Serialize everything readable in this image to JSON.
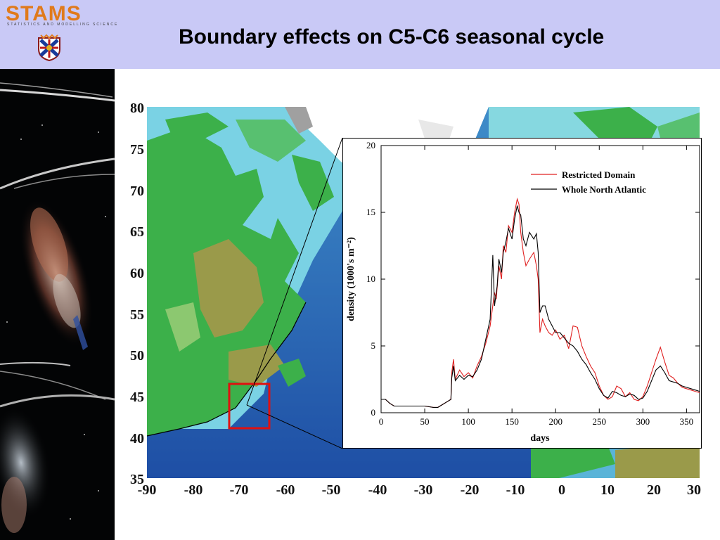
{
  "header": {
    "logo_text": "STAMS",
    "logo_subtext": "STATISTICS AND MODELLING SCIENCE",
    "title": "Boundary effects on C5-C6 seasonal cycle"
  },
  "photo": {
    "subject": "copepod"
  },
  "colors": {
    "header_bg": "#c9c9f6",
    "logo": "#e07a1c",
    "highlight_box": "#e01010",
    "restricted_line": "#e02020",
    "whole_line": "#000000"
  },
  "map": {
    "x_ticks": [
      "-90",
      "-80",
      "-70",
      "-60",
      "-50",
      "-40",
      "-30",
      "-20",
      "-10",
      "0",
      "10",
      "20",
      "30"
    ],
    "y_ticks": [
      "80",
      "75",
      "70",
      "65",
      "60",
      "55",
      "50",
      "45",
      "40",
      "35"
    ]
  },
  "chart_data": {
    "type": "line",
    "xlabel": "days",
    "ylabel": "density (1000's m⁻²)",
    "xlim": [
      0,
      365
    ],
    "ylim": [
      0,
      20
    ],
    "x_ticks": [
      0,
      50,
      100,
      150,
      200,
      250,
      300,
      350
    ],
    "y_ticks": [
      0,
      5,
      10,
      15,
      20
    ],
    "legend_position": "top-right",
    "grid": false,
    "series": [
      {
        "name": "Restricted Domain",
        "color": "#e02020",
        "points": [
          [
            0,
            1.0
          ],
          [
            5,
            1.0
          ],
          [
            10,
            0.7
          ],
          [
            15,
            0.5
          ],
          [
            20,
            0.5
          ],
          [
            30,
            0.5
          ],
          [
            40,
            0.5
          ],
          [
            50,
            0.5
          ],
          [
            60,
            0.4
          ],
          [
            65,
            0.4
          ],
          [
            70,
            0.6
          ],
          [
            75,
            0.8
          ],
          [
            80,
            1.0
          ],
          [
            81,
            3.0
          ],
          [
            83,
            4.0
          ],
          [
            85,
            2.5
          ],
          [
            90,
            3.2
          ],
          [
            95,
            2.7
          ],
          [
            100,
            3.0
          ],
          [
            105,
            2.6
          ],
          [
            110,
            3.5
          ],
          [
            115,
            4.2
          ],
          [
            120,
            5.2
          ],
          [
            125,
            6.5
          ],
          [
            130,
            9.0
          ],
          [
            132,
            8.5
          ],
          [
            135,
            11.0
          ],
          [
            138,
            10.0
          ],
          [
            140,
            12.5
          ],
          [
            143,
            12.0
          ],
          [
            146,
            14.0
          ],
          [
            150,
            13.5
          ],
          [
            153,
            15.0
          ],
          [
            156,
            16.0
          ],
          [
            158,
            15.6
          ],
          [
            160,
            13.5
          ],
          [
            163,
            12.0
          ],
          [
            166,
            11.0
          ],
          [
            170,
            11.5
          ],
          [
            175,
            12.0
          ],
          [
            178,
            11.0
          ],
          [
            180,
            10.0
          ],
          [
            182,
            6.0
          ],
          [
            185,
            7.0
          ],
          [
            188,
            6.5
          ],
          [
            192,
            6.0
          ],
          [
            196,
            5.8
          ],
          [
            200,
            6.2
          ],
          [
            205,
            5.5
          ],
          [
            210,
            5.8
          ],
          [
            215,
            4.8
          ],
          [
            220,
            6.5
          ],
          [
            225,
            6.4
          ],
          [
            230,
            5.0
          ],
          [
            235,
            4.2
          ],
          [
            240,
            3.5
          ],
          [
            245,
            3.0
          ],
          [
            250,
            2.0
          ],
          [
            255,
            1.3
          ],
          [
            260,
            1.0
          ],
          [
            265,
            1.2
          ],
          [
            270,
            2.0
          ],
          [
            275,
            1.8
          ],
          [
            280,
            1.2
          ],
          [
            285,
            1.5
          ],
          [
            290,
            1.0
          ],
          [
            295,
            0.9
          ],
          [
            300,
            1.2
          ],
          [
            305,
            2.0
          ],
          [
            310,
            3.0
          ],
          [
            315,
            4.0
          ],
          [
            320,
            4.9
          ],
          [
            325,
            3.8
          ],
          [
            330,
            2.8
          ],
          [
            335,
            2.6
          ],
          [
            340,
            2.2
          ],
          [
            345,
            1.9
          ],
          [
            350,
            1.8
          ],
          [
            355,
            1.7
          ],
          [
            360,
            1.6
          ],
          [
            365,
            1.5
          ]
        ]
      },
      {
        "name": "Whole North Atlantic",
        "color": "#000000",
        "points": [
          [
            0,
            1.0
          ],
          [
            5,
            1.0
          ],
          [
            10,
            0.7
          ],
          [
            15,
            0.5
          ],
          [
            20,
            0.5
          ],
          [
            30,
            0.5
          ],
          [
            40,
            0.5
          ],
          [
            50,
            0.5
          ],
          [
            60,
            0.4
          ],
          [
            65,
            0.4
          ],
          [
            70,
            0.6
          ],
          [
            75,
            0.8
          ],
          [
            80,
            1.0
          ],
          [
            81,
            2.6
          ],
          [
            83,
            3.5
          ],
          [
            85,
            2.4
          ],
          [
            90,
            2.8
          ],
          [
            95,
            2.5
          ],
          [
            100,
            2.8
          ],
          [
            105,
            2.7
          ],
          [
            110,
            3.2
          ],
          [
            115,
            4.0
          ],
          [
            120,
            5.5
          ],
          [
            125,
            7.0
          ],
          [
            128,
            11.8
          ],
          [
            130,
            8.0
          ],
          [
            133,
            9.5
          ],
          [
            135,
            11.5
          ],
          [
            138,
            10.5
          ],
          [
            140,
            12.0
          ],
          [
            143,
            12.8
          ],
          [
            146,
            13.8
          ],
          [
            150,
            13.0
          ],
          [
            153,
            14.5
          ],
          [
            156,
            15.5
          ],
          [
            158,
            15.0
          ],
          [
            160,
            14.8
          ],
          [
            163,
            13.0
          ],
          [
            166,
            12.5
          ],
          [
            170,
            13.5
          ],
          [
            175,
            13.0
          ],
          [
            178,
            13.4
          ],
          [
            180,
            12.0
          ],
          [
            182,
            7.5
          ],
          [
            185,
            8.0
          ],
          [
            188,
            8.0
          ],
          [
            192,
            7.0
          ],
          [
            196,
            6.5
          ],
          [
            200,
            6.0
          ],
          [
            205,
            6.0
          ],
          [
            210,
            5.6
          ],
          [
            215,
            5.2
          ],
          [
            220,
            5.0
          ],
          [
            225,
            4.6
          ],
          [
            230,
            4.0
          ],
          [
            235,
            3.6
          ],
          [
            240,
            3.0
          ],
          [
            245,
            2.5
          ],
          [
            250,
            1.8
          ],
          [
            255,
            1.3
          ],
          [
            260,
            1.1
          ],
          [
            265,
            1.6
          ],
          [
            270,
            1.5
          ],
          [
            275,
            1.3
          ],
          [
            280,
            1.2
          ],
          [
            285,
            1.4
          ],
          [
            290,
            1.3
          ],
          [
            295,
            1.0
          ],
          [
            300,
            1.1
          ],
          [
            305,
            1.6
          ],
          [
            310,
            2.4
          ],
          [
            315,
            3.2
          ],
          [
            320,
            3.5
          ],
          [
            325,
            3.0
          ],
          [
            330,
            2.4
          ],
          [
            335,
            2.3
          ],
          [
            340,
            2.2
          ],
          [
            345,
            2.0
          ],
          [
            350,
            1.9
          ],
          [
            355,
            1.8
          ],
          [
            360,
            1.7
          ],
          [
            365,
            1.6
          ]
        ]
      }
    ]
  }
}
